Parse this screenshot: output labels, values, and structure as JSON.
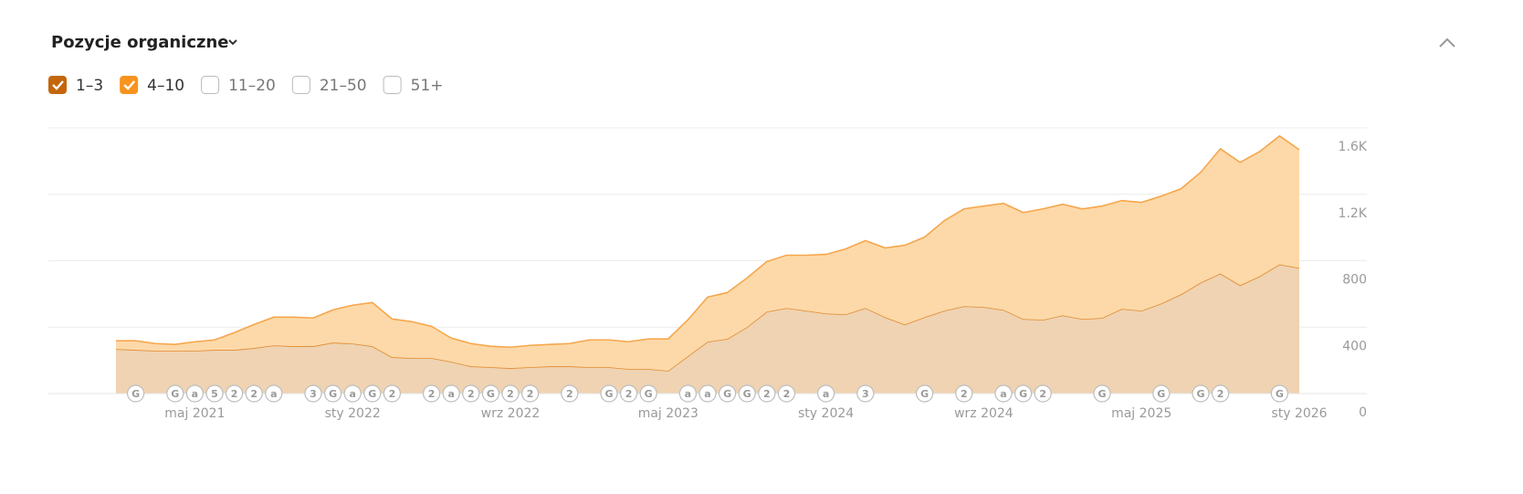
{
  "chart_data": {
    "type": "stacked-area",
    "title": "Pozycje organiczne",
    "categories": [
      null,
      null,
      null,
      null,
      "maj 2021",
      null,
      null,
      null,
      null,
      null,
      null,
      null,
      "sty 2022",
      null,
      null,
      null,
      null,
      null,
      null,
      null,
      "wrz 2022",
      null,
      null,
      null,
      null,
      null,
      null,
      null,
      "maj 2023",
      null,
      null,
      null,
      null,
      null,
      null,
      null,
      "sty 2024",
      null,
      null,
      null,
      null,
      null,
      null,
      null,
      "wrz 2024",
      null,
      null,
      null,
      null,
      null,
      null,
      null,
      "maj 2025",
      null,
      null,
      null,
      null,
      null,
      null,
      null,
      "sty 2026"
    ],
    "series": [
      {
        "name": "1–3",
        "color": "#c4660c",
        "fill": "#efd3b2",
        "stroke": "#e08a30",
        "checked": true,
        "values": [
          268,
          263,
          258,
          258,
          258,
          263,
          263,
          274,
          290,
          285,
          285,
          307,
          301,
          285,
          219,
          214,
          214,
          192,
          164,
          159,
          153,
          159,
          164,
          164,
          159,
          159,
          148,
          148,
          137,
          225,
          312,
          329,
          400,
          493,
          515,
          499,
          482,
          477,
          515,
          460,
          416,
          460,
          499,
          526,
          521,
          504,
          449,
          444,
          471,
          449,
          455,
          510,
          499,
          542,
          597,
          668,
          723,
          652,
          707,
          778,
          756
        ]
      },
      {
        "name": "4–10",
        "color": "#f7931e",
        "fill": "#fdd9a9",
        "stroke": "#f6a64c",
        "checked": true,
        "values": [
          50,
          55,
          43,
          38,
          54,
          60,
          104,
          142,
          170,
          175,
          170,
          197,
          231,
          263,
          230,
          219,
          191,
          142,
          137,
          126,
          126,
          131,
          132,
          137,
          164,
          164,
          164,
          181,
          192,
          219,
          269,
          279,
          296,
          302,
          318,
          334,
          356,
          394,
          406,
          417,
          477,
          482,
          542,
          586,
          608,
          641,
          641,
          668,
          669,
          663,
          674,
          652,
          652,
          647,
          636,
          664,
          751,
          740,
          751,
          773,
          712
        ]
      }
    ],
    "hidden_series": [
      "11–20",
      "21–50",
      "51+"
    ],
    "ylim": [
      0,
      1600
    ],
    "yticks": [
      0,
      400,
      800,
      {
        "value": 1200,
        "label": "1.2K"
      },
      {
        "value": 1600,
        "label": "1.6K"
      }
    ],
    "grid": true,
    "annotations": [
      "G",
      "G",
      "a",
      "5",
      "2",
      "2",
      "a",
      "3",
      "G",
      "a",
      "G",
      "2",
      "2",
      "a",
      "2",
      "G",
      "2",
      "2",
      "2",
      "G",
      "2",
      "G",
      "a",
      "a",
      "G",
      "G",
      "2",
      "2",
      "a",
      "3",
      "G",
      "2",
      "a",
      "G",
      "2",
      "G",
      "G",
      "G",
      "2",
      "G"
    ]
  }
}
